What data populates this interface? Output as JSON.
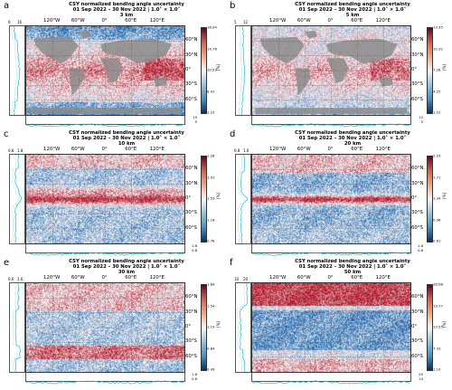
{
  "panels": [
    {
      "letter": "a",
      "title1": "CSY normalized bending angle uncertainty",
      "title2": "01 Sep 2022 – 30 Nov 2022 |  1.0˚ × 1.0˚",
      "title3": "3 km",
      "cbar_ticks": [
        "18.94",
        "14.76",
        "10.59",
        "6.41",
        "2.23"
      ],
      "side_ticks": [
        "6",
        "16"
      ],
      "bottom_ticks": [
        "15",
        "5"
      ],
      "land_mask": true
    },
    {
      "letter": "b",
      "title1": "CSY normalized bending angle uncertainty",
      "title2": "01 Sep 2022 – 30 Nov 2022 |  1.0˚ × 1.0˚",
      "title3": "5 km",
      "cbar_ticks": [
        "13.35",
        "10.32",
        "7.28",
        "4.25",
        "1.22"
      ],
      "side_ticks": [
        "5",
        "12"
      ],
      "bottom_ticks": [
        "12",
        "5"
      ],
      "land_mask": true
    },
    {
      "letter": "c",
      "title1": "CSY normalized bending angle uncertainty",
      "title2": "01 Sep 2022 – 30 Nov 2022 |  1.0˚ × 1.0˚",
      "title3": "10 km",
      "cbar_ticks": [
        "2.28",
        "1.91",
        "1.53",
        "1.16",
        "0.78"
      ],
      "side_ticks": [
        "0.8",
        "1.8"
      ],
      "bottom_ticks": [
        "1.8",
        "0.8"
      ],
      "land_mask": false
    },
    {
      "letter": "d",
      "title1": "CSY normalized bending angle uncertainty",
      "title2": "01 Sep 2022 – 30 Nov 2022 |  1.0˚ × 1.0˚",
      "title3": "20 km",
      "cbar_ticks": [
        "2.03",
        "1.71",
        "1.34",
        "0.98",
        "0.61"
      ],
      "side_ticks": [
        "0.8",
        "1.6"
      ],
      "bottom_ticks": [
        "1.6",
        "0.8"
      ],
      "land_mask": false
    },
    {
      "letter": "e",
      "title1": "CSY normalized bending angle uncertainty",
      "title2": "01 Sep 2022 – 30 Nov 2022 |  1.0˚ × 1.0˚",
      "title3": "30 km",
      "cbar_ticks": [
        "1.89",
        "1.54",
        "1.19",
        "0.84",
        "0.49"
      ],
      "side_ticks": [
        "0.6",
        "1.6"
      ],
      "bottom_ticks": [
        "1.6",
        "0.6"
      ],
      "land_mask": false
    },
    {
      "letter": "f",
      "title1": "CSY normalized bending angle uncertainty",
      "title2": "01 Sep 2022 – 30 Nov 2022 |  1.0˚ × 1.0˚",
      "title3": "50 km",
      "cbar_ticks": [
        "26.08",
        "19.77",
        "13.55",
        "7.33",
        "1.10"
      ],
      "side_ticks": [
        "10",
        "20"
      ],
      "bottom_ticks": [
        "20",
        "10"
      ],
      "land_mask": false
    }
  ],
  "lon_labels": [
    "120°W",
    "60°W",
    "0°",
    "60°E",
    "120°E"
  ],
  "lat_labels": [
    "60°N",
    "30°N",
    "0°",
    "30°S",
    "60°S"
  ],
  "cbar_unit": "[%]",
  "colors": {
    "high": "#b2182b",
    "mid": "#f7f7f7",
    "low": "#2166ac",
    "land": "#8c8c8c",
    "profile": "#17becf"
  }
}
